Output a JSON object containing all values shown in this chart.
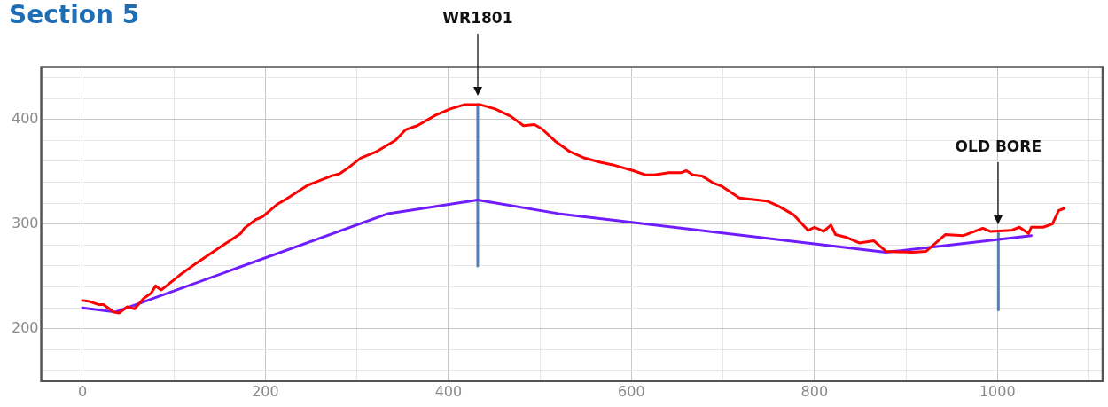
{
  "chart_data": {
    "type": "line",
    "title": "Section 5",
    "marker": "none",
    "grid": true,
    "xlim": [
      -45,
      1115
    ],
    "ylim": [
      150,
      450
    ],
    "xticks": [
      0,
      {
        "value": 100,
        "label": null
      },
      200,
      {
        "value": 300,
        "label": null
      },
      400,
      {
        "value": 500,
        "label": null
      },
      600,
      {
        "value": 700,
        "label": null
      },
      800,
      {
        "value": 900,
        "label": null
      },
      1000,
      {
        "value": 1100,
        "label": null
      }
    ],
    "yticks": [
      {
        "value": 160,
        "label": null
      },
      {
        "value": 180,
        "label": null
      },
      200,
      {
        "value": 220,
        "label": null
      },
      {
        "value": 240,
        "label": null
      },
      {
        "value": 260,
        "label": null
      },
      {
        "value": 280,
        "label": null
      },
      300,
      {
        "value": 320,
        "label": null
      },
      {
        "value": 340,
        "label": null
      },
      {
        "value": 360,
        "label": null
      },
      {
        "value": 380,
        "label": null
      },
      400,
      {
        "value": 420,
        "label": null
      },
      {
        "value": 440,
        "label": null
      }
    ],
    "series": [
      {
        "color": "#ff0000",
        "x": [
          0,
          8,
          18,
          23,
          28,
          34,
          40,
          49,
          57,
          67,
          75,
          80,
          86,
          106,
          125,
          154,
          173,
          177,
          189,
          197,
          213,
          223,
          246,
          255,
          272,
          281,
          291,
          304,
          321,
          342,
          353,
          366,
          386,
          402,
          417,
          435,
          451,
          468,
          482,
          494,
          502,
          517,
          533,
          549,
          566,
          582,
          602,
          615,
          625,
          641,
          654,
          660,
          667,
          677,
          690,
          699,
          718,
          748,
          761,
          777,
          793,
          800,
          810,
          818,
          823,
          836,
          849,
          865,
          878,
          907,
          922,
          943,
          963,
          984,
          992,
          1015,
          1024,
          1034,
          1037,
          1050,
          1060,
          1067,
          1073
        ],
        "values": [
          227,
          226,
          223,
          223,
          220,
          216,
          215,
          221,
          219,
          229,
          234,
          241,
          237,
          251,
          263,
          280,
          291,
          296,
          304,
          307,
          319,
          324,
          337,
          340,
          346,
          348,
          354,
          363,
          369,
          380,
          390,
          394,
          404,
          410,
          414,
          414,
          410,
          403,
          394,
          395,
          391,
          379,
          369,
          363,
          359,
          356,
          351,
          347,
          347,
          349,
          349,
          351,
          347,
          346,
          339,
          336,
          325,
          322,
          317,
          309,
          294,
          297,
          293,
          299,
          290,
          287,
          282,
          284,
          274,
          273,
          274,
          290,
          289,
          296,
          293,
          294,
          297,
          291,
          297,
          297,
          300,
          313,
          315
        ]
      },
      {
        "color": "#6f1dff",
        "x": [
          0,
          36,
          334,
          432,
          520,
          878,
          1037
        ],
        "values": [
          220,
          216,
          310,
          323,
          310,
          273,
          289
        ]
      },
      {
        "color": "#4f81bd",
        "x": [
          432,
          432
        ],
        "values": [
          260,
          414
        ]
      },
      {
        "color": "#4f81bd",
        "x": [
          1001,
          1001
        ],
        "values": [
          218,
          291
        ]
      }
    ],
    "annotations": [
      "WR1801",
      "OLD BORE"
    ]
  }
}
